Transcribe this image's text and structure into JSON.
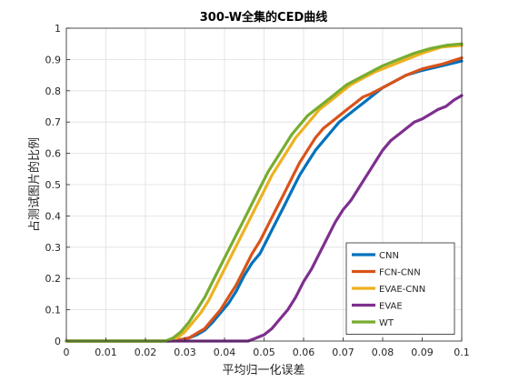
{
  "chart_data": {
    "type": "line",
    "title": "300-W全集的CED曲线",
    "xlabel": "平均归一化误差",
    "ylabel": "占测试图片的比例",
    "xlim": [
      0,
      0.1
    ],
    "ylim": [
      0,
      1
    ],
    "x_ticks": [
      "0",
      "0.01",
      "0.02",
      "0.03",
      "0.04",
      "0.05",
      "0.06",
      "0.07",
      "0.08",
      "0.09",
      "0.1"
    ],
    "y_ticks": [
      "0",
      "0.1",
      "0.2",
      "0.3",
      "0.4",
      "0.5",
      "0.6",
      "0.7",
      "0.8",
      "0.9",
      "1"
    ],
    "grid": true,
    "legend_position": "bottom-right",
    "series": [
      {
        "name": "CNN",
        "color": "#0072BD",
        "points": [
          [
            0,
            0
          ],
          [
            0.026,
            0
          ],
          [
            0.029,
            0.005
          ],
          [
            0.031,
            0.01
          ],
          [
            0.033,
            0.02
          ],
          [
            0.035,
            0.035
          ],
          [
            0.037,
            0.06
          ],
          [
            0.039,
            0.09
          ],
          [
            0.041,
            0.12
          ],
          [
            0.043,
            0.16
          ],
          [
            0.045,
            0.21
          ],
          [
            0.047,
            0.25
          ],
          [
            0.049,
            0.28
          ],
          [
            0.051,
            0.33
          ],
          [
            0.053,
            0.38
          ],
          [
            0.055,
            0.43
          ],
          [
            0.057,
            0.48
          ],
          [
            0.059,
            0.53
          ],
          [
            0.061,
            0.57
          ],
          [
            0.063,
            0.61
          ],
          [
            0.065,
            0.64
          ],
          [
            0.067,
            0.67
          ],
          [
            0.069,
            0.7
          ],
          [
            0.071,
            0.72
          ],
          [
            0.073,
            0.74
          ],
          [
            0.075,
            0.76
          ],
          [
            0.077,
            0.78
          ],
          [
            0.08,
            0.81
          ],
          [
            0.083,
            0.83
          ],
          [
            0.086,
            0.85
          ],
          [
            0.09,
            0.865
          ],
          [
            0.095,
            0.88
          ],
          [
            0.1,
            0.895
          ]
        ]
      },
      {
        "name": "FCN-CNN",
        "color": "#D95319",
        "points": [
          [
            0,
            0
          ],
          [
            0.026,
            0
          ],
          [
            0.029,
            0.005
          ],
          [
            0.031,
            0.01
          ],
          [
            0.033,
            0.025
          ],
          [
            0.035,
            0.04
          ],
          [
            0.037,
            0.07
          ],
          [
            0.039,
            0.1
          ],
          [
            0.041,
            0.14
          ],
          [
            0.043,
            0.18
          ],
          [
            0.045,
            0.23
          ],
          [
            0.047,
            0.28
          ],
          [
            0.049,
            0.32
          ],
          [
            0.051,
            0.37
          ],
          [
            0.053,
            0.42
          ],
          [
            0.055,
            0.47
          ],
          [
            0.057,
            0.52
          ],
          [
            0.059,
            0.57
          ],
          [
            0.061,
            0.61
          ],
          [
            0.063,
            0.65
          ],
          [
            0.065,
            0.68
          ],
          [
            0.067,
            0.7
          ],
          [
            0.069,
            0.72
          ],
          [
            0.071,
            0.74
          ],
          [
            0.073,
            0.76
          ],
          [
            0.075,
            0.78
          ],
          [
            0.077,
            0.79
          ],
          [
            0.08,
            0.81
          ],
          [
            0.083,
            0.83
          ],
          [
            0.086,
            0.85
          ],
          [
            0.09,
            0.87
          ],
          [
            0.095,
            0.885
          ],
          [
            0.1,
            0.905
          ]
        ]
      },
      {
        "name": "EVAE-CNN",
        "color": "#EDB120",
        "points": [
          [
            0,
            0
          ],
          [
            0.025,
            0
          ],
          [
            0.028,
            0.01
          ],
          [
            0.03,
            0.03
          ],
          [
            0.032,
            0.06
          ],
          [
            0.034,
            0.09
          ],
          [
            0.036,
            0.13
          ],
          [
            0.038,
            0.18
          ],
          [
            0.04,
            0.23
          ],
          [
            0.042,
            0.28
          ],
          [
            0.044,
            0.33
          ],
          [
            0.046,
            0.38
          ],
          [
            0.048,
            0.43
          ],
          [
            0.05,
            0.48
          ],
          [
            0.052,
            0.53
          ],
          [
            0.054,
            0.57
          ],
          [
            0.056,
            0.61
          ],
          [
            0.058,
            0.65
          ],
          [
            0.06,
            0.68
          ],
          [
            0.062,
            0.71
          ],
          [
            0.064,
            0.74
          ],
          [
            0.066,
            0.76
          ],
          [
            0.068,
            0.78
          ],
          [
            0.07,
            0.8
          ],
          [
            0.072,
            0.82
          ],
          [
            0.075,
            0.84
          ],
          [
            0.078,
            0.86
          ],
          [
            0.082,
            0.88
          ],
          [
            0.086,
            0.9
          ],
          [
            0.09,
            0.92
          ],
          [
            0.095,
            0.94
          ],
          [
            0.1,
            0.945
          ]
        ]
      },
      {
        "name": "EVAE",
        "color": "#7E2F8E",
        "points": [
          [
            0,
            0
          ],
          [
            0.046,
            0
          ],
          [
            0.048,
            0.01
          ],
          [
            0.05,
            0.02
          ],
          [
            0.052,
            0.04
          ],
          [
            0.054,
            0.07
          ],
          [
            0.056,
            0.1
          ],
          [
            0.058,
            0.14
          ],
          [
            0.06,
            0.19
          ],
          [
            0.062,
            0.23
          ],
          [
            0.064,
            0.28
          ],
          [
            0.066,
            0.33
          ],
          [
            0.068,
            0.38
          ],
          [
            0.07,
            0.42
          ],
          [
            0.072,
            0.45
          ],
          [
            0.074,
            0.49
          ],
          [
            0.076,
            0.53
          ],
          [
            0.078,
            0.57
          ],
          [
            0.08,
            0.61
          ],
          [
            0.082,
            0.64
          ],
          [
            0.084,
            0.66
          ],
          [
            0.086,
            0.68
          ],
          [
            0.088,
            0.7
          ],
          [
            0.09,
            0.71
          ],
          [
            0.092,
            0.725
          ],
          [
            0.094,
            0.74
          ],
          [
            0.096,
            0.75
          ],
          [
            0.098,
            0.77
          ],
          [
            0.1,
            0.785
          ]
        ]
      },
      {
        "name": "WT",
        "color": "#77AC30",
        "points": [
          [
            0,
            0
          ],
          [
            0.025,
            0
          ],
          [
            0.027,
            0.01
          ],
          [
            0.029,
            0.03
          ],
          [
            0.031,
            0.06
          ],
          [
            0.033,
            0.1
          ],
          [
            0.035,
            0.14
          ],
          [
            0.037,
            0.19
          ],
          [
            0.039,
            0.24
          ],
          [
            0.041,
            0.29
          ],
          [
            0.043,
            0.34
          ],
          [
            0.045,
            0.39
          ],
          [
            0.047,
            0.44
          ],
          [
            0.049,
            0.49
          ],
          [
            0.051,
            0.54
          ],
          [
            0.053,
            0.58
          ],
          [
            0.055,
            0.62
          ],
          [
            0.057,
            0.66
          ],
          [
            0.059,
            0.69
          ],
          [
            0.061,
            0.72
          ],
          [
            0.063,
            0.74
          ],
          [
            0.065,
            0.76
          ],
          [
            0.067,
            0.78
          ],
          [
            0.069,
            0.8
          ],
          [
            0.071,
            0.82
          ],
          [
            0.074,
            0.84
          ],
          [
            0.077,
            0.86
          ],
          [
            0.08,
            0.88
          ],
          [
            0.084,
            0.9
          ],
          [
            0.088,
            0.92
          ],
          [
            0.092,
            0.935
          ],
          [
            0.096,
            0.945
          ],
          [
            0.1,
            0.95
          ]
        ]
      }
    ]
  }
}
